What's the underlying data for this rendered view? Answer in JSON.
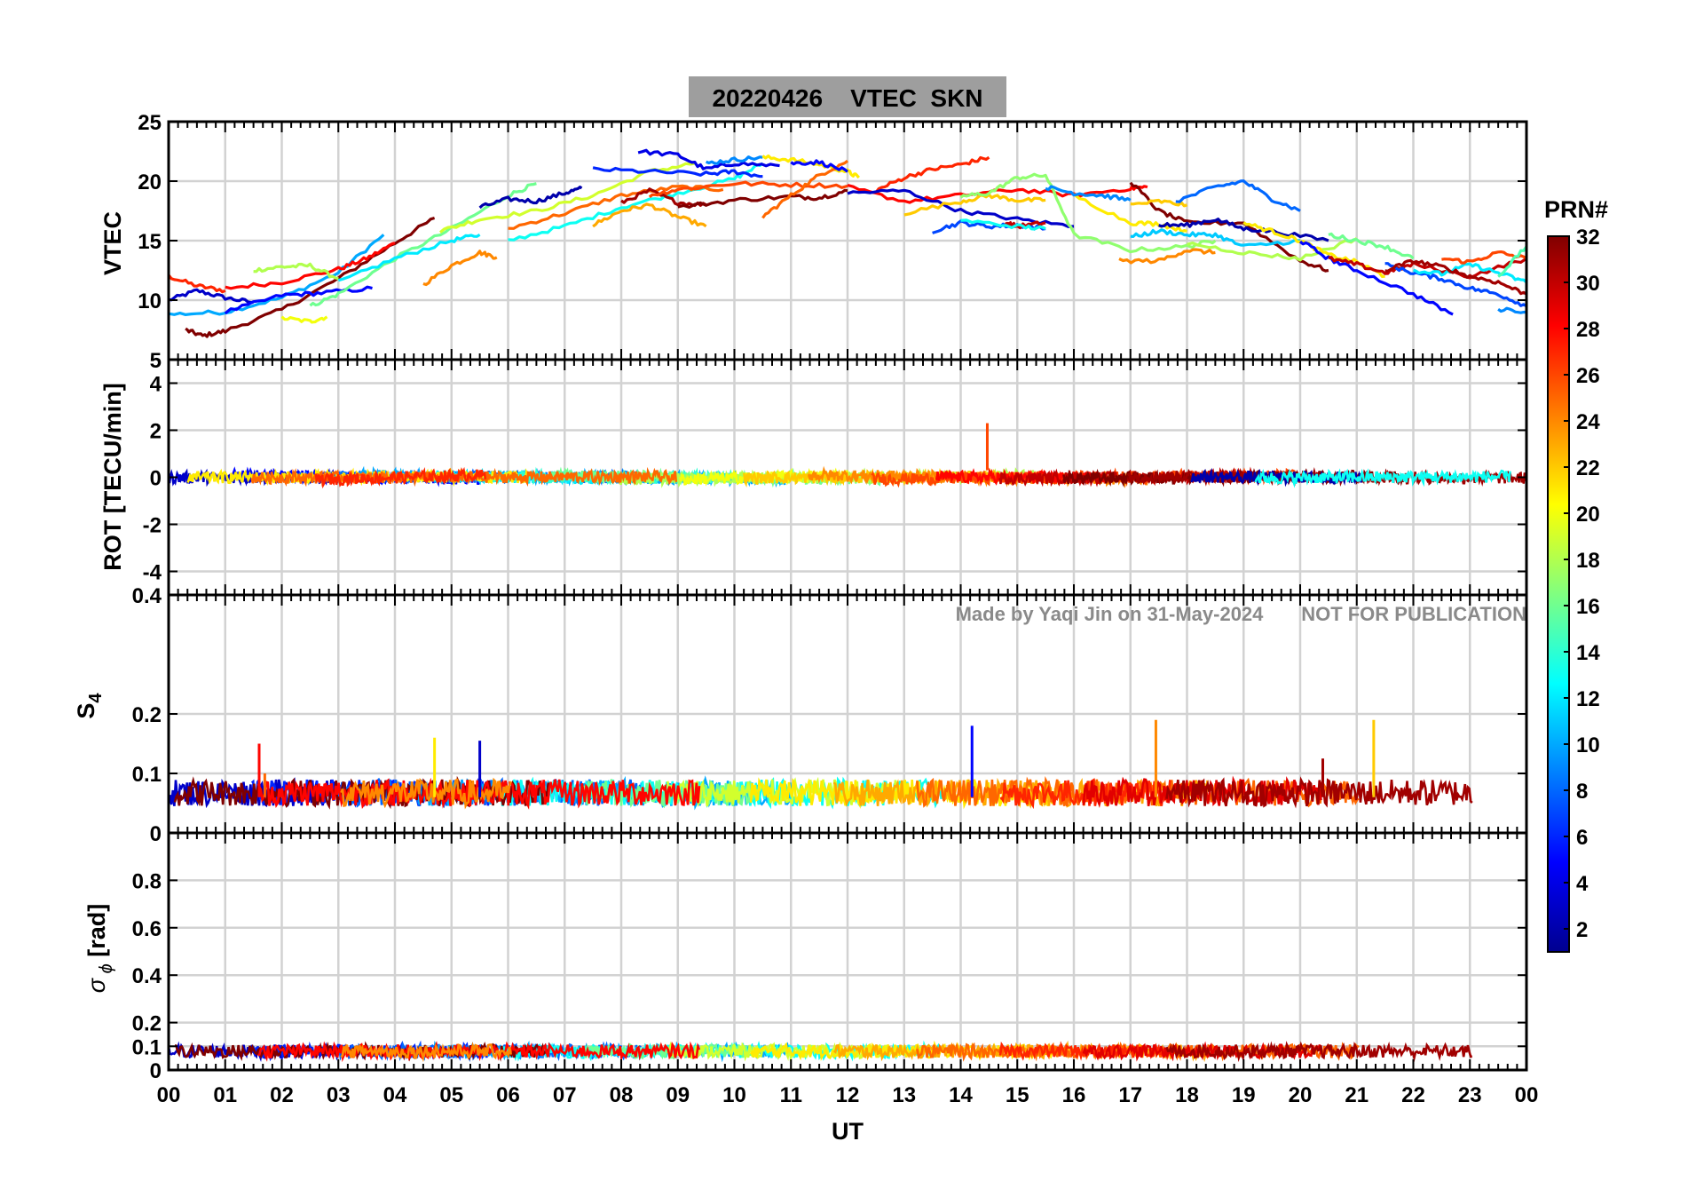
{
  "chart_data": {
    "type": "line",
    "title": "20220426    VTEC  SKN",
    "xlabel": "UT",
    "x_ticks": [
      "00",
      "01",
      "02",
      "03",
      "04",
      "05",
      "06",
      "07",
      "08",
      "09",
      "10",
      "11",
      "12",
      "13",
      "14",
      "15",
      "16",
      "17",
      "18",
      "19",
      "20",
      "21",
      "22",
      "23",
      "00"
    ],
    "x_range_hours": [
      0,
      24
    ],
    "watermark": "Made by Yaqi Jin on 31-May-2024       NOT FOR PUBLICATION",
    "colorbar": {
      "label": "PRN#",
      "range": [
        1,
        32
      ],
      "ticks": [
        "2",
        "4",
        "6",
        "8",
        "10",
        "12",
        "14",
        "16",
        "18",
        "20",
        "22",
        "24",
        "26",
        "28",
        "30",
        "32"
      ],
      "colormap": [
        "#00008f",
        "#0000ff",
        "#0080ff",
        "#00ffff",
        "#80ff80",
        "#ffff00",
        "#ff8000",
        "#ff0000",
        "#800000"
      ]
    },
    "panels": [
      {
        "id": "vtec",
        "ylabel": "VTEC",
        "ylim": [
          5,
          25
        ],
        "yticks": [
          "5",
          "10",
          "15",
          "20",
          "25"
        ],
        "series": [
          {
            "prn": 3,
            "x": [
              0.0,
              0.5,
              1.0,
              1.5
            ],
            "y": [
              10,
              10.8,
              10.2,
              9.8
            ]
          },
          {
            "prn": 27,
            "x": [
              0.0,
              0.5,
              1.0
            ],
            "y": [
              12,
              11.2,
              10.8
            ]
          },
          {
            "prn": 10,
            "x": [
              0.0,
              1.0,
              2.0,
              3.0,
              3.8
            ],
            "y": [
              8.8,
              9,
              10.2,
              12.3,
              15.5
            ]
          },
          {
            "prn": 32,
            "x": [
              0.3,
              0.6,
              1.0,
              2.0,
              3.0,
              4.0,
              4.7
            ],
            "y": [
              7.5,
              7,
              7.4,
              9.2,
              11.8,
              14.8,
              16.9
            ]
          },
          {
            "prn": 28,
            "x": [
              1.0,
              2.0,
              3.0,
              3.5,
              4.0
            ],
            "y": [
              11,
              11.5,
              12.6,
              13.5,
              14.8
            ]
          },
          {
            "prn": 18,
            "x": [
              1.5,
              2.0,
              2.5,
              3.0
            ],
            "y": [
              12.5,
              12.8,
              12.9,
              11.8
            ]
          },
          {
            "prn": 5,
            "x": [
              1.0,
              2.0,
              2.7,
              3.6
            ],
            "y": [
              9,
              10.4,
              10.6,
              11
            ]
          },
          {
            "prn": 20,
            "x": [
              2.0,
              2.5,
              2.8
            ],
            "y": [
              8.5,
              8.2,
              8.6
            ]
          },
          {
            "prn": 16,
            "x": [
              2.5,
              3.0,
              4.0,
              5.0,
              6.0,
              6.5
            ],
            "y": [
              9.5,
              10.5,
              13.5,
              16,
              18.8,
              19.8
            ]
          },
          {
            "prn": 12,
            "x": [
              3.0,
              4.0,
              5.0,
              5.5
            ],
            "y": [
              11.5,
              13.5,
              15,
              15.5
            ]
          },
          {
            "prn": 24,
            "x": [
              4.5,
              5.0,
              5.5,
              5.8
            ],
            "y": [
              11.3,
              12.9,
              14,
              13.6
            ]
          },
          {
            "prn": 19,
            "x": [
              4.8,
              5.5,
              6.5,
              7.5,
              8.5,
              9.3
            ],
            "y": [
              15.8,
              16.8,
              17.5,
              18.8,
              20.8,
              21.5
            ]
          },
          {
            "prn": 2,
            "x": [
              5.5,
              6.0,
              6.5,
              7.0,
              7.3
            ],
            "y": [
              17.8,
              18.5,
              18.3,
              19,
              19.4
            ]
          },
          {
            "prn": 13,
            "x": [
              6.0,
              7.0,
              8.0,
              9.0,
              10.0,
              10.5
            ],
            "y": [
              15,
              16.2,
              17.8,
              19,
              20.2,
              21.5
            ]
          },
          {
            "prn": 25,
            "x": [
              6.0,
              7.0,
              8.0,
              9.0,
              9.8
            ],
            "y": [
              16,
              17.3,
              18.8,
              19.5,
              19.3
            ]
          },
          {
            "prn": 23,
            "x": [
              7.5,
              8.0,
              8.5,
              9.0,
              9.5
            ],
            "y": [
              16.3,
              17.5,
              18,
              17,
              16.2
            ]
          },
          {
            "prn": 6,
            "x": [
              7.5,
              8.5,
              9.5,
              10.0,
              10.5
            ],
            "y": [
              21,
              20.8,
              20.6,
              20.8,
              20.4
            ]
          },
          {
            "prn": 4,
            "x": [
              8.3,
              9.0,
              9.5,
              10.0,
              10.8
            ],
            "y": [
              22.5,
              22.2,
              21,
              21.5,
              21.3
            ]
          },
          {
            "prn": 31,
            "x": [
              8.0,
              8.5,
              9.0,
              9.5
            ],
            "y": [
              18.2,
              19.2,
              18.2,
              18
            ]
          },
          {
            "prn": 26,
            "x": [
              8.5,
              9.0,
              10.0,
              11.0,
              12.0
            ],
            "y": [
              18.8,
              19.3,
              19.8,
              19.7,
              19.6
            ]
          },
          {
            "prn": 32,
            "x": [
              9.0,
              10.0,
              11.0,
              11.5,
              12.0
            ],
            "y": [
              17.8,
              18.4,
              18.7,
              18.6,
              19.2
            ]
          },
          {
            "prn": 9,
            "x": [
              9.5,
              10.0,
              10.5
            ],
            "y": [
              21.5,
              21.8,
              22
            ]
          },
          {
            "prn": 21,
            "x": [
              10.5,
              11.0,
              11.5,
              12.0,
              12.2
            ],
            "y": [
              22,
              21.8,
              21.4,
              20.8,
              20.3
            ]
          },
          {
            "prn": 25,
            "x": [
              10.5,
              11.0,
              11.5,
              12.0
            ],
            "y": [
              17,
              18.8,
              20.5,
              21.7
            ]
          },
          {
            "prn": 5,
            "x": [
              11.0,
              11.5,
              12.0
            ],
            "y": [
              21.5,
              21.6,
              20.8
            ]
          },
          {
            "prn": 28,
            "x": [
              12.0,
              13.0,
              14.0,
              15.0,
              16.0,
              17.0,
              17.3
            ],
            "y": [
              19.5,
              18.3,
              18.8,
              19.3,
              18.8,
              19.4,
              19.5
            ]
          },
          {
            "prn": 27,
            "x": [
              12.5,
              13.0,
              13.5,
              14.0,
              14.5
            ],
            "y": [
              19.2,
              20.3,
              21,
              21.4,
              22
            ]
          },
          {
            "prn": 3,
            "x": [
              12.0,
              13.0,
              14.0,
              15.0,
              16.0
            ],
            "y": [
              19,
              19.2,
              17.5,
              16.8,
              16.2
            ]
          },
          {
            "prn": 22,
            "x": [
              13.0,
              14.0,
              14.5,
              15.0,
              15.5
            ],
            "y": [
              17.3,
              18.3,
              18.8,
              18.4,
              18.4
            ]
          },
          {
            "prn": 17,
            "x": [
              14.0,
              14.5,
              15.0,
              15.5,
              16.0,
              17.0,
              18.0,
              18.5
            ],
            "y": [
              18.7,
              19,
              20.3,
              20.5,
              15.5,
              14.2,
              14.5,
              15
            ]
          },
          {
            "prn": 7,
            "x": [
              13.5,
              14.0,
              14.5,
              15.0,
              15.5
            ],
            "y": [
              15.8,
              16.5,
              16.2,
              16.3,
              16
            ]
          },
          {
            "prn": 30,
            "x": [
              14.8,
              15.0,
              15.5
            ],
            "y": [
              16.5,
              16.2,
              16.5
            ]
          },
          {
            "prn": 13,
            "x": [
              14.0,
              15.0,
              15.5
            ],
            "y": [
              16.7,
              16.2,
              16
            ]
          },
          {
            "prn": 21,
            "x": [
              16.0,
              17.0,
              17.5,
              18.0
            ],
            "y": [
              18.8,
              16.5,
              16.4,
              15.8
            ]
          },
          {
            "prn": 9,
            "x": [
              15.5,
              16.0,
              16.5,
              17.0
            ],
            "y": [
              19.5,
              19,
              18.8,
              18.4
            ]
          },
          {
            "prn": 32,
            "x": [
              17.0,
              17.5,
              18.0,
              19.0,
              20.0,
              20.5
            ],
            "y": [
              20,
              17.5,
              16.5,
              16.5,
              13.3,
              12.5
            ]
          },
          {
            "prn": 11,
            "x": [
              17.0,
              17.5,
              18.0,
              18.5,
              19.0,
              20.0
            ],
            "y": [
              15.3,
              15.8,
              15.5,
              15.5,
              14.5,
              15
            ]
          },
          {
            "prn": 22,
            "x": [
              17.0,
              17.5,
              18.0
            ],
            "y": [
              18,
              18.3,
              18
            ]
          },
          {
            "prn": 24,
            "x": [
              16.8,
              17.5,
              18.0,
              18.5
            ],
            "y": [
              13.3,
              13.3,
              14.2,
              14
            ]
          },
          {
            "prn": 8,
            "x": [
              17.8,
              18.5,
              19.0,
              19.5,
              20.0
            ],
            "y": [
              18.3,
              19.5,
              20,
              18.5,
              17.5
            ]
          },
          {
            "prn": 2,
            "x": [
              17.5,
              18.0,
              18.5,
              19.0,
              19.5,
              20.5
            ],
            "y": [
              16.3,
              16.3,
              16.8,
              16,
              15.8,
              15
            ]
          },
          {
            "prn": 18,
            "x": [
              18.0,
              19.0,
              20.0,
              21.0
            ],
            "y": [
              14.8,
              14,
              13.5,
              15.2
            ]
          },
          {
            "prn": 21,
            "x": [
              19.0,
              19.5,
              20.0,
              20.5,
              21.0,
              21.5
            ],
            "y": [
              16.5,
              15.8,
              15,
              13.8,
              13.2,
              12
            ]
          },
          {
            "prn": 5,
            "x": [
              20.0,
              20.5,
              21.0,
              22.0,
              22.7
            ],
            "y": [
              15,
              13.5,
              12.5,
              10.5,
              8.8
            ]
          },
          {
            "prn": 16,
            "x": [
              20.5,
              21.0,
              21.5,
              22.0
            ],
            "y": [
              15.5,
              15,
              14.5,
              13.5
            ]
          },
          {
            "prn": 30,
            "x": [
              20.5,
              21.0,
              21.5,
              22.0,
              23.0,
              24.0
            ],
            "y": [
              13.5,
              13,
              12.3,
              13,
              12,
              13.5
            ]
          },
          {
            "prn": 7,
            "x": [
              21.5,
              22.0,
              22.5,
              23.0,
              23.5,
              24.0
            ],
            "y": [
              13,
              12.3,
              11.8,
              11,
              10.5,
              9.5
            ]
          },
          {
            "prn": 12,
            "x": [
              22.0,
              22.5,
              23.0,
              23.5,
              24.0
            ],
            "y": [
              12.5,
              12.2,
              13,
              12.3,
              11.5
            ]
          },
          {
            "prn": 26,
            "x": [
              22.5,
              23.0,
              23.5,
              24.0
            ],
            "y": [
              13.5,
              13.2,
              14,
              13.5
            ]
          },
          {
            "prn": 31,
            "x": [
              21.5,
              22.0,
              22.5,
              23.0,
              23.5,
              24.0
            ],
            "y": [
              12.5,
              13.3,
              12.8,
              12,
              11.5,
              10.5
            ]
          },
          {
            "prn": 15,
            "x": [
              23.5,
              24.0
            ],
            "y": [
              12,
              14.5
            ]
          },
          {
            "prn": 9,
            "x": [
              23.5,
              24.0
            ],
            "y": [
              9.2,
              9
            ]
          }
        ]
      },
      {
        "id": "rot",
        "ylabel": "ROT [TECU/min]",
        "ylim": [
          -5,
          5
        ],
        "yticks": [
          "-4",
          "-2",
          "0",
          "2",
          "4"
        ],
        "spikes": [
          {
            "prn": 26,
            "x": 14.47,
            "y": 2.3
          }
        ]
      },
      {
        "id": "s4",
        "ylabel": "S4",
        "ylim": [
          0,
          0.4
        ],
        "yticks": [
          "0",
          "0.1",
          "0.2",
          "0.4"
        ],
        "baseline_range": [
          0.03,
          0.08
        ],
        "spikes": [
          {
            "prn": 28,
            "x": 1.6,
            "y": 0.15
          },
          {
            "prn": 25,
            "x": 1.7,
            "y": 0.1
          },
          {
            "prn": 21,
            "x": 4.7,
            "y": 0.16
          },
          {
            "prn": 3,
            "x": 5.5,
            "y": 0.155
          },
          {
            "prn": 5,
            "x": 14.2,
            "y": 0.18
          },
          {
            "prn": 24,
            "x": 17.45,
            "y": 0.19
          },
          {
            "prn": 22,
            "x": 21.3,
            "y": 0.19
          },
          {
            "prn": 31,
            "x": 20.4,
            "y": 0.125
          }
        ]
      },
      {
        "id": "sigphi",
        "ylabel": "σ ϕ [rad]",
        "ylim": [
          0,
          1
        ],
        "yticks": [
          "0",
          "0.1",
          "0.2",
          "0.4",
          "0.6",
          "0.8"
        ],
        "baseline_range": [
          0.03,
          0.1
        ]
      }
    ]
  }
}
